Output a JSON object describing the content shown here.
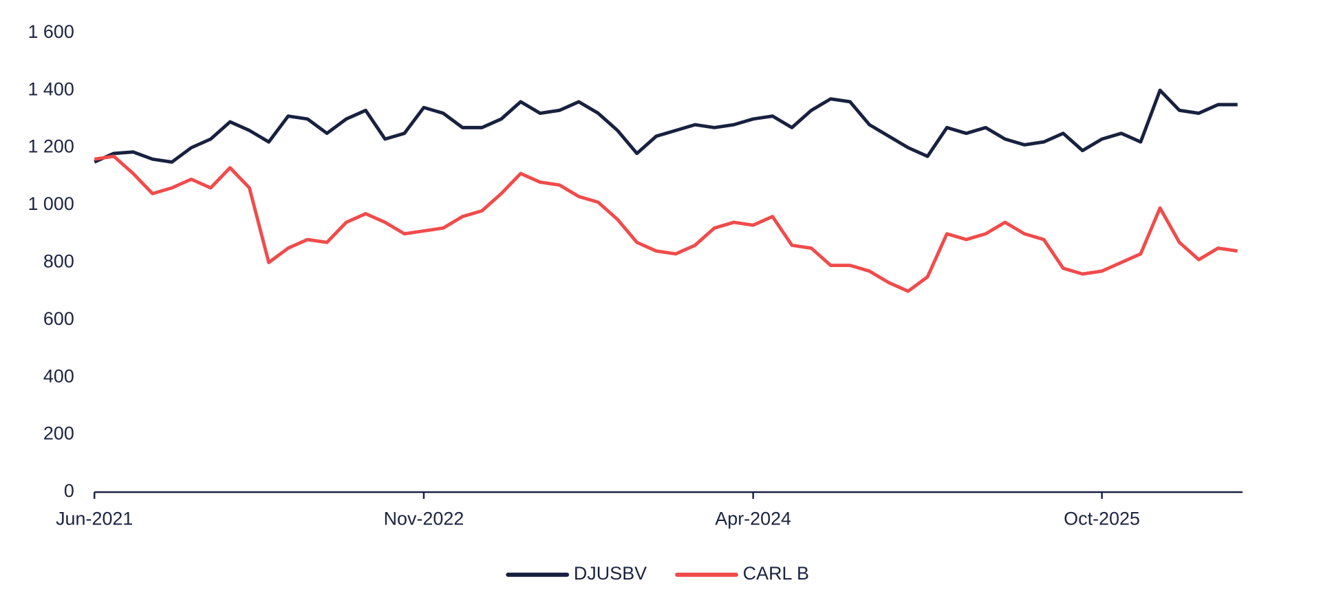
{
  "chart_data": {
    "type": "line",
    "categories": [
      "Jun-2021",
      null,
      null,
      null,
      null,
      null,
      null,
      null,
      null,
      null,
      null,
      null,
      null,
      null,
      null,
      null,
      null,
      "Nov-2022",
      null,
      null,
      null,
      null,
      null,
      null,
      null,
      null,
      null,
      null,
      null,
      null,
      null,
      null,
      null,
      null,
      "Apr-2024",
      null,
      null,
      null,
      null,
      null,
      null,
      null,
      null,
      null,
      null,
      null,
      null,
      null,
      null,
      null,
      null,
      null,
      "Oct-2025",
      null,
      null,
      null,
      null,
      null,
      null,
      null
    ],
    "series": [
      {
        "name": "DJUSBV",
        "color": "#18213f",
        "values": [
          1150,
          1180,
          1185,
          1160,
          1150,
          1200,
          1230,
          1290,
          1260,
          1220,
          1310,
          1300,
          1250,
          1300,
          1330,
          1230,
          1250,
          1340,
          1320,
          1270,
          1270,
          1300,
          1360,
          1320,
          1330,
          1360,
          1320,
          1260,
          1180,
          1240,
          1260,
          1280,
          1270,
          1280,
          1300,
          1310,
          1270,
          1330,
          1370,
          1360,
          1280,
          1240,
          1200,
          1170,
          1270,
          1250,
          1270,
          1230,
          1210,
          1220,
          1250,
          1190,
          1230,
          1250,
          1220,
          1400,
          1330,
          1320,
          1350,
          1350
        ]
      },
      {
        "name": "CARL B",
        "color": "#f04b4b",
        "values": [
          1160,
          1170,
          1110,
          1040,
          1060,
          1090,
          1060,
          1130,
          1060,
          800,
          850,
          880,
          870,
          940,
          970,
          940,
          900,
          910,
          920,
          960,
          980,
          1040,
          1110,
          1080,
          1070,
          1030,
          1010,
          950,
          870,
          840,
          830,
          860,
          920,
          940,
          930,
          960,
          860,
          850,
          790,
          790,
          770,
          730,
          700,
          750,
          900,
          880,
          900,
          940,
          900,
          880,
          780,
          760,
          770,
          800,
          830,
          990,
          870,
          810,
          850,
          840
        ]
      }
    ],
    "ylim": [
      0,
      1600
    ],
    "yticks": [
      0,
      200,
      400,
      600,
      800,
      {
        "value": 1000,
        "label": "1 000"
      },
      {
        "value": 1200,
        "label": "1 200"
      },
      {
        "value": 1400,
        "label": "1 400"
      },
      {
        "value": 1600,
        "label": "1 600"
      }
    ],
    "grid": false
  }
}
